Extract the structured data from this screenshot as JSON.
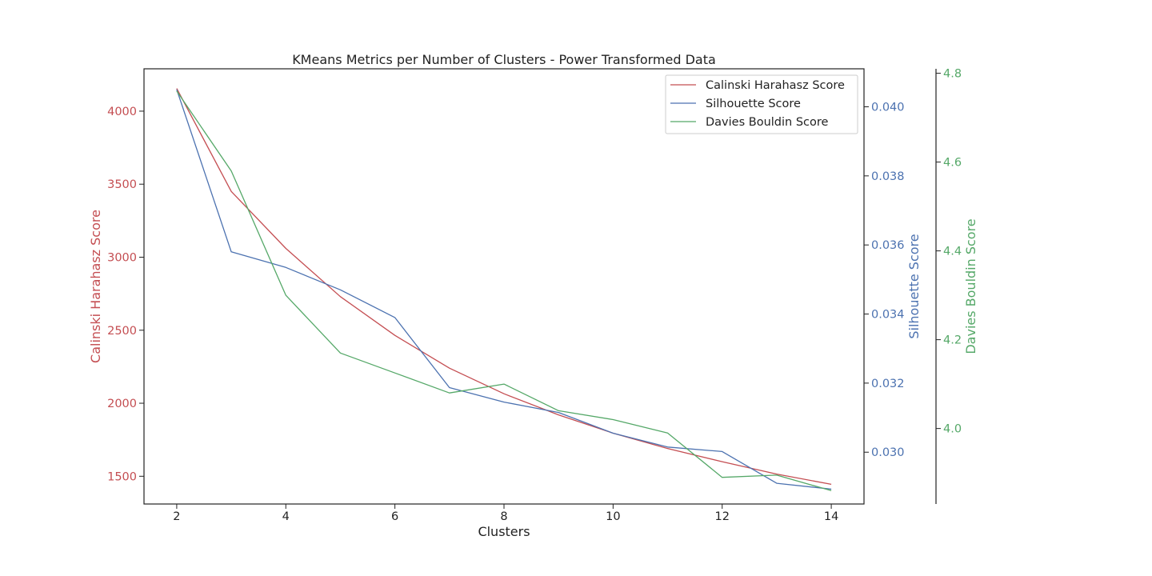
{
  "chart_data": {
    "type": "line",
    "title": "KMeans Metrics per Number of Clusters - Power Transformed Data",
    "xlabel": "Clusters",
    "x": [
      2,
      3,
      4,
      5,
      6,
      7,
      8,
      9,
      10,
      11,
      12,
      13,
      14
    ],
    "x_ticks": [
      2,
      4,
      6,
      8,
      10,
      12,
      14
    ],
    "xlim": [
      1.4,
      14.6
    ],
    "grid": false,
    "legend_position": "top-right",
    "axes": [
      {
        "id": "left",
        "label": "Calinski Harahasz Score",
        "color": "#c44e52",
        "ylim": [
          1310,
          4290
        ],
        "ticks": [
          1500,
          2000,
          2500,
          3000,
          3500,
          4000
        ]
      },
      {
        "id": "right1",
        "label": "Silhouette Score",
        "color": "#4c72b0",
        "ylim": [
          0.0285,
          0.0411
        ],
        "ticks": [
          "0.030",
          "0.032",
          "0.034",
          "0.036",
          "0.038",
          "0.040"
        ]
      },
      {
        "id": "right2",
        "label": "Davies Bouldin Score",
        "color": "#55a868",
        "ylim": [
          3.83,
          4.81
        ],
        "ticks": [
          "4.0",
          "4.2",
          "4.4",
          "4.6",
          "4.8"
        ]
      }
    ],
    "series": [
      {
        "name": "Calinski Harahasz Score",
        "axis": "left",
        "color": "#c44e52",
        "values": [
          4155,
          3450,
          3060,
          2730,
          2465,
          2240,
          2065,
          1920,
          1795,
          1690,
          1600,
          1515,
          1445
        ]
      },
      {
        "name": "Silhouette Score",
        "axis": "right1",
        "color": "#4c72b0",
        "values": [
          0.0405,
          0.0358,
          0.03535,
          0.0347,
          0.0339,
          0.03187,
          0.03145,
          0.03115,
          0.03055,
          0.03015,
          0.03002,
          0.0291,
          0.02893
        ]
      },
      {
        "name": "Davies Bouldin Score",
        "axis": "right2",
        "color": "#55a868",
        "values": [
          4.76,
          4.58,
          4.3,
          4.17,
          4.125,
          4.08,
          4.1,
          4.04,
          4.02,
          3.99,
          3.89,
          3.895,
          3.86
        ]
      }
    ]
  }
}
